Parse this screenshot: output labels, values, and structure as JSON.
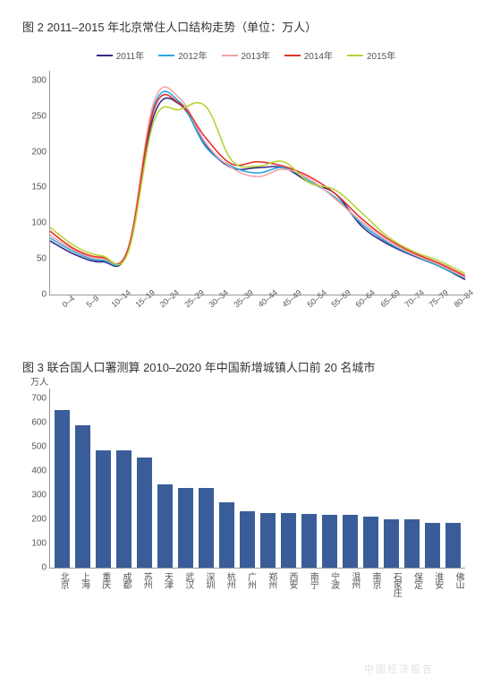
{
  "figure2": {
    "title": "图 2  2011–2015 年北京常住人口结构走势（单位：万人）",
    "type": "line",
    "background_color": "#ffffff",
    "axis_color": "#999999",
    "label_fontsize": 10,
    "title_fontsize": 13,
    "ylim": [
      0,
      300
    ],
    "ytick_step": 50,
    "yticks": [
      0,
      50,
      100,
      150,
      200,
      250,
      300
    ],
    "x_categories": [
      "0–4",
      "5–9",
      "10–14",
      "15–19",
      "20–24",
      "25–29",
      "30–34",
      "35–39",
      "40–44",
      "45–49",
      "50–54",
      "55–59",
      "60–64",
      "65–69",
      "70–74",
      "75–79",
      "80–84"
    ],
    "series": [
      {
        "name": "2011年",
        "color": "#322b85",
        "values": [
          72,
          53,
          44,
          58,
          240,
          255,
          200,
          170,
          170,
          170,
          150,
          135,
          92,
          68,
          52,
          38,
          20
        ]
      },
      {
        "name": "2012年",
        "color": "#2aa7e0",
        "values": [
          76,
          56,
          46,
          60,
          252,
          258,
          198,
          172,
          163,
          170,
          152,
          130,
          95,
          70,
          53,
          38,
          22
        ]
      },
      {
        "name": "2013年",
        "color": "#f2a6a4",
        "values": [
          80,
          58,
          48,
          62,
          258,
          263,
          203,
          170,
          158,
          168,
          155,
          128,
          98,
          72,
          54,
          40,
          23
        ]
      },
      {
        "name": "2014年",
        "color": "#e0322f",
        "values": [
          85,
          60,
          50,
          60,
          248,
          256,
          210,
          175,
          178,
          172,
          158,
          135,
          102,
          75,
          56,
          42,
          25
        ]
      },
      {
        "name": "2015年",
        "color": "#b7d334",
        "values": [
          90,
          64,
          52,
          56,
          232,
          248,
          252,
          180,
          172,
          178,
          150,
          140,
          110,
          78,
          58,
          45,
          28
        ]
      }
    ],
    "line_width": 1.6
  },
  "figure3": {
    "title": "图 3  联合国人口署测算 2010–2020 年中国新增城镇人口前 20 名城市",
    "type": "bar",
    "background_color": "#ffffff",
    "axis_color": "#999999",
    "bar_color": "#3a5d9a",
    "label_fontsize": 10,
    "title_fontsize": 13,
    "y_unit": "万人",
    "ylim": [
      0,
      700
    ],
    "ytick_step": 100,
    "yticks": [
      0,
      100,
      200,
      300,
      400,
      500,
      600,
      700
    ],
    "bar_width": 0.7,
    "categories": [
      "北京",
      "上海",
      "重庆",
      "成都",
      "苏州",
      "天津",
      "武汉",
      "深圳",
      "杭州",
      "广州",
      "郑州",
      "西安",
      "南宁",
      "宁波",
      "温州",
      "南京",
      "石家庄",
      "保定",
      "淮安",
      "佛山"
    ],
    "values": [
      615,
      555,
      460,
      460,
      430,
      325,
      310,
      310,
      255,
      220,
      215,
      215,
      210,
      205,
      205,
      200,
      190,
      190,
      175,
      175
    ]
  },
  "watermark": "中国经济报告"
}
